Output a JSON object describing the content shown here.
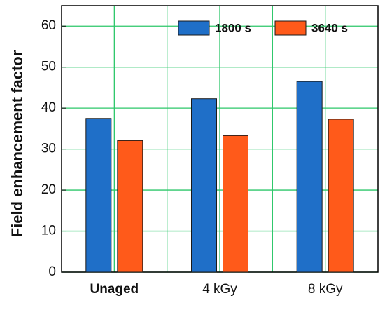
{
  "chart_data": {
    "type": "bar",
    "y_label": "Field enhancement factor",
    "categories": [
      "Unaged",
      "4 kGy",
      "8 kGy"
    ],
    "series": [
      {
        "name": "1800 s",
        "color": "#1f6fc8",
        "values": [
          37.5,
          42.3,
          46.5
        ]
      },
      {
        "name": "3640 s",
        "color": "#ff5a1a",
        "values": [
          32.1,
          33.3,
          37.3
        ]
      }
    ],
    "ylim": [
      0,
      65
    ],
    "yticks": [
      0,
      10,
      20,
      30,
      40,
      50,
      60
    ],
    "grid": true,
    "legend": "top-right"
  }
}
